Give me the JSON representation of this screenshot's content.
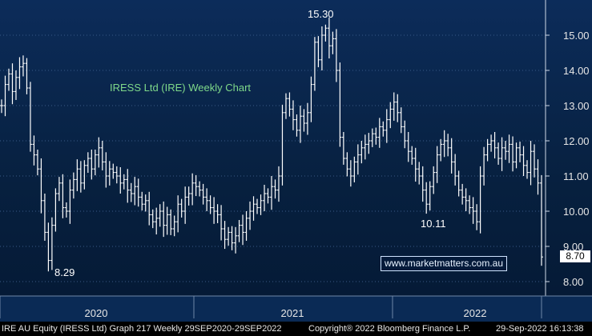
{
  "chart_data": {
    "type": "ohlc",
    "title": "IRESS Ltd (IRE) Weekly Chart",
    "ylim": [
      7.5,
      16.2
    ],
    "yticks": [
      "8.00",
      "9.00",
      "10.00",
      "11.00",
      "12.00",
      "13.00",
      "14.00",
      "15.00"
    ],
    "years": [
      "2020",
      "2021",
      "2022"
    ],
    "last_price": "8.70",
    "annotations": {
      "high": "15.30",
      "low": "8.29",
      "mid": "10.11"
    },
    "closes": [
      13.0,
      13.6,
      13.9,
      13.4,
      13.8,
      14.1,
      14.2,
      13.5,
      11.9,
      11.6,
      11.2,
      10.3,
      9.4,
      8.6,
      9.6,
      10.5,
      10.8,
      10.1,
      10.0,
      10.6,
      10.9,
      11.2,
      10.8,
      11.3,
      11.5,
      11.2,
      11.6,
      11.8,
      11.4,
      11.0,
      11.2,
      11.1,
      11.0,
      10.8,
      10.9,
      10.6,
      10.5,
      10.7,
      10.4,
      10.2,
      10.3,
      9.9,
      9.7,
      9.8,
      10.0,
      9.6,
      9.9,
      9.5,
      9.7,
      10.2,
      10.0,
      10.4,
      10.5,
      10.8,
      10.7,
      10.6,
      10.4,
      10.3,
      10.1,
      10.0,
      9.9,
      9.5,
      9.2,
      9.4,
      9.1,
      9.3,
      9.6,
      9.4,
      9.8,
      10.0,
      10.2,
      10.1,
      10.3,
      10.5,
      10.4,
      10.7,
      10.6,
      11.0,
      12.8,
      13.2,
      12.9,
      12.6,
      12.3,
      12.7,
      12.5,
      12.8,
      13.6,
      14.8,
      14.3,
      15.0,
      15.2,
      14.7,
      14.9,
      14.0,
      12.1,
      11.5,
      11.2,
      11.0,
      11.4,
      11.6,
      11.8,
      11.9,
      12.0,
      12.2,
      12.1,
      12.4,
      12.3,
      12.6,
      12.9,
      13.1,
      12.8,
      12.4,
      12.0,
      11.7,
      11.5,
      11.2,
      11.0,
      10.6,
      10.2,
      10.7,
      11.1,
      11.6,
      11.9,
      12.0,
      11.8,
      11.4,
      11.0,
      10.6,
      10.4,
      10.3,
      10.1,
      10.0,
      9.7,
      11.0,
      11.6,
      11.9,
      12.0,
      11.8,
      11.5,
      11.8,
      11.7,
      11.9,
      11.4,
      11.8,
      11.6,
      11.3,
      11.1,
      11.7,
      11.2,
      10.8,
      8.7
    ]
  },
  "watermark": "www.marketmatters.com.au",
  "footer": {
    "left": "IRE AU Equity (IRESS Ltd) Graph 217  Weekly 29SEP2020-29SEP2022",
    "center": "Copyright® 2022 Bloomberg Finance L.P.",
    "right": "29-Sep-2022 16:13:38"
  },
  "colors": {
    "background": "#082450",
    "bars": "#ffffff",
    "title": "#7fd98a",
    "grid": "#3a5a86"
  }
}
